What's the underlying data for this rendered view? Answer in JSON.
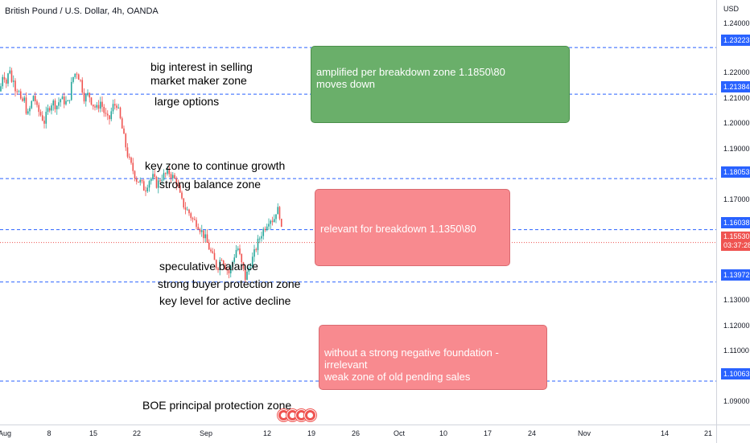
{
  "symbol_title": "British Pound / U.S. Dollar, 4h, OANDA",
  "colors": {
    "up": "#26a69a",
    "down": "#ef5350",
    "level_line": "#2962ff",
    "green_box": "#6aaf6a",
    "green_box_border": "#4a8f4a",
    "red_box": "#f88a8f",
    "red_box_border": "#d96a70",
    "price_label_bg": "#2962ff",
    "current_price_bg": "#ef5350"
  },
  "price_axis": {
    "currency": "USD",
    "ticks": [
      "1.24000",
      "1.22000",
      "1.21000",
      "1.20000",
      "1.19000",
      "1.17000",
      "1.13000",
      "1.12000",
      "1.11000",
      "1.09000"
    ],
    "level_labels": [
      "1.23223",
      "1.21384",
      "1.18053",
      "1.16038",
      "1.13972",
      "1.10063"
    ],
    "current_price": "1.15530",
    "countdown": "03:37:28"
  },
  "time_axis": {
    "ticks": [
      "Aug",
      "8",
      "15",
      "22",
      "Sep",
      "12",
      "19",
      "26",
      "Oct",
      "10",
      "17",
      "24",
      "Nov",
      "14",
      "21"
    ]
  },
  "annotations": {
    "selling_line1": "big interest in selling",
    "selling_line2": "market maker zone",
    "large_options": "large options",
    "key_zone": "key zone to continue growth",
    "strong_balance": "strong balance zone",
    "speculative": "speculative balance",
    "buyer_protection": "strong buyer protection zone",
    "key_level": "key level for active decline",
    "boe": "BOE principal protection zone"
  },
  "boxes": {
    "green_line1": "amplified per breakdown zone 1.1850\\80",
    "green_line2": "moves down",
    "red1_line1": "relevant for breakdown 1.1350\\80",
    "red2_line1": "without a strong negative foundation - irrelevant",
    "red2_line2": "weak zone of  old pending sales"
  },
  "event_icons": [
    "economic-event-icon",
    "economic-event-icon",
    "economic-event-icon",
    "economic-event-icon"
  ],
  "chart_data": {
    "type": "candlestick",
    "title": "British Pound / U.S. Dollar, 4h, OANDA",
    "ylabel": "USD",
    "ylim": [
      1.0835,
      1.251
    ],
    "x_categories": [
      "Aug",
      "8",
      "15",
      "22",
      "Sep",
      "12",
      "19",
      "26",
      "Oct",
      "10",
      "17",
      "24",
      "Nov",
      "14",
      "21"
    ],
    "levels": [
      1.23223,
      1.21384,
      1.18053,
      1.16038,
      1.13972,
      1.10063
    ],
    "last_price": 1.1553,
    "close_path": [
      [
        0,
        1.215
      ],
      [
        4,
        1.223
      ],
      [
        8,
        1.218
      ],
      [
        12,
        1.225
      ],
      [
        14,
        1.218
      ],
      [
        17,
        1.221
      ],
      [
        20,
        1.214
      ],
      [
        22,
        1.217
      ],
      [
        26,
        1.21
      ],
      [
        30,
        1.212
      ],
      [
        34,
        1.205
      ],
      [
        38,
        1.209
      ],
      [
        42,
        1.214
      ],
      [
        46,
        1.208
      ],
      [
        50,
        1.206
      ],
      [
        55,
        1.203
      ],
      [
        60,
        1.208
      ],
      [
        65,
        1.211
      ],
      [
        70,
        1.209
      ],
      [
        75,
        1.212
      ],
      [
        80,
        1.211
      ],
      [
        85,
        1.21
      ],
      [
        90,
        1.22
      ],
      [
        95,
        1.223
      ],
      [
        100,
        1.219
      ],
      [
        105,
        1.212
      ],
      [
        110,
        1.214
      ],
      [
        115,
        1.21
      ],
      [
        120,
        1.208
      ],
      [
        125,
        1.211
      ],
      [
        130,
        1.206
      ],
      [
        135,
        1.203
      ],
      [
        140,
        1.209
      ],
      [
        145,
        1.21
      ],
      [
        150,
        1.203
      ],
      [
        155,
        1.195
      ],
      [
        160,
        1.188
      ],
      [
        165,
        1.184
      ],
      [
        170,
        1.18
      ],
      [
        175,
        1.179
      ],
      [
        180,
        1.176
      ],
      [
        185,
        1.18
      ],
      [
        190,
        1.181
      ],
      [
        195,
        1.178
      ],
      [
        200,
        1.181
      ],
      [
        205,
        1.182
      ],
      [
        210,
        1.183
      ],
      [
        215,
        1.181
      ],
      [
        220,
        1.179
      ],
      [
        225,
        1.172
      ],
      [
        230,
        1.169
      ],
      [
        235,
        1.167
      ],
      [
        240,
        1.164
      ],
      [
        245,
        1.163
      ],
      [
        250,
        1.16
      ],
      [
        255,
        1.157
      ],
      [
        260,
        1.153
      ],
      [
        265,
        1.149
      ],
      [
        270,
        1.145
      ],
      [
        275,
        1.15
      ],
      [
        280,
        1.146
      ],
      [
        285,
        1.143
      ],
      [
        290,
        1.149
      ],
      [
        295,
        1.154
      ],
      [
        300,
        1.147
      ],
      [
        305,
        1.141
      ],
      [
        310,
        1.146
      ],
      [
        315,
        1.15
      ],
      [
        320,
        1.155
      ],
      [
        325,
        1.159
      ],
      [
        330,
        1.162
      ],
      [
        335,
        1.165
      ],
      [
        340,
        1.164
      ],
      [
        344,
        1.169
      ],
      [
        348,
        1.166
      ],
      [
        351,
        1.1553
      ]
    ]
  }
}
